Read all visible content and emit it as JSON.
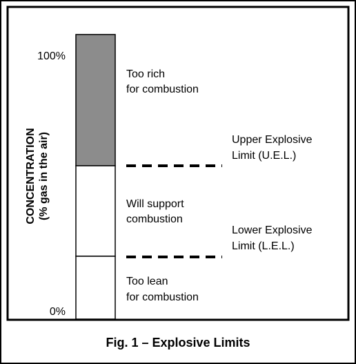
{
  "axis": {
    "label": "CONCENTRATION",
    "sublabel": "(% gas in the air)",
    "top": "100%",
    "bottom": "0%"
  },
  "zones": [
    {
      "lines": [
        "Too rich",
        "for combustion"
      ]
    },
    {
      "lines": [
        "Will support",
        "combustion"
      ]
    },
    {
      "lines": [
        "Too lean",
        "for combustion"
      ]
    }
  ],
  "limits": [
    {
      "lines": [
        "Upper Explosive",
        "Limit (U.E.L.)"
      ]
    },
    {
      "lines": [
        "Lower Explosive",
        "Limit (L.E.L.)"
      ]
    }
  ],
  "caption": "Fig. 1 – Explosive Limits"
}
